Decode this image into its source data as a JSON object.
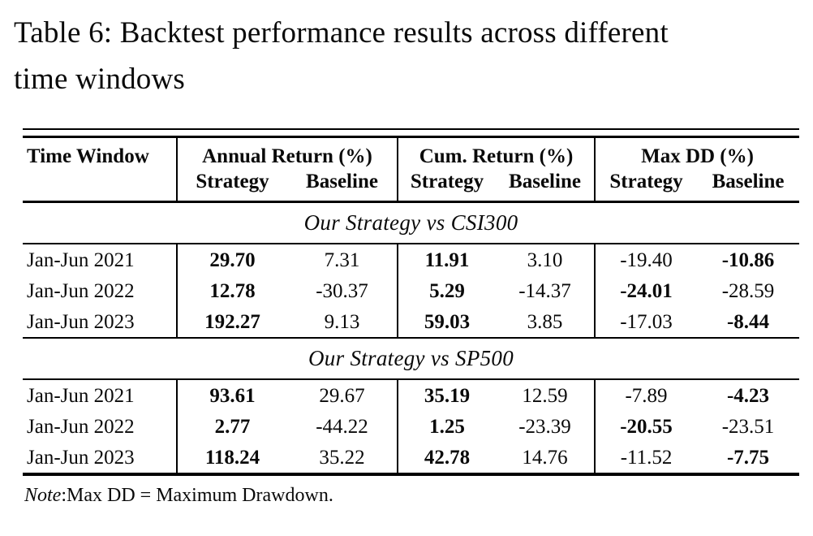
{
  "caption": {
    "line1": "Table 6: Backtest performance results across different",
    "line2": "time windows"
  },
  "colors": {
    "text": "#0a0a0a",
    "rule": "#000000",
    "background": "#ffffff"
  },
  "table": {
    "header": {
      "time_window": "Time Window",
      "groups": [
        {
          "label": "Annual Return (%)"
        },
        {
          "label": "Cum. Return (%)"
        },
        {
          "label": "Max DD (%)"
        }
      ],
      "sub": {
        "strategy": "Strategy",
        "baseline": "Baseline"
      }
    },
    "sections": [
      {
        "title": "Our Strategy vs CSI300",
        "rows": [
          {
            "time_window": "Jan-Jun 2021",
            "cells": [
              {
                "text": "29.70",
                "bold": true
              },
              {
                "text": "7.31",
                "bold": false
              },
              {
                "text": "11.91",
                "bold": true
              },
              {
                "text": "3.10",
                "bold": false
              },
              {
                "text": "-19.40",
                "bold": false
              },
              {
                "text": "-10.86",
                "bold": true
              }
            ]
          },
          {
            "time_window": "Jan-Jun 2022",
            "cells": [
              {
                "text": "12.78",
                "bold": true
              },
              {
                "text": "-30.37",
                "bold": false
              },
              {
                "text": "5.29",
                "bold": true
              },
              {
                "text": "-14.37",
                "bold": false
              },
              {
                "text": "-24.01",
                "bold": true
              },
              {
                "text": "-28.59",
                "bold": false
              }
            ]
          },
          {
            "time_window": "Jan-Jun 2023",
            "cells": [
              {
                "text": "192.27",
                "bold": true
              },
              {
                "text": "9.13",
                "bold": false
              },
              {
                "text": "59.03",
                "bold": true
              },
              {
                "text": "3.85",
                "bold": false
              },
              {
                "text": "-17.03",
                "bold": false
              },
              {
                "text": "-8.44",
                "bold": true
              }
            ]
          }
        ]
      },
      {
        "title": "Our Strategy vs SP500",
        "rows": [
          {
            "time_window": "Jan-Jun 2021",
            "cells": [
              {
                "text": "93.61",
                "bold": true
              },
              {
                "text": "29.67",
                "bold": false
              },
              {
                "text": "35.19",
                "bold": true
              },
              {
                "text": "12.59",
                "bold": false
              },
              {
                "text": "-7.89",
                "bold": false
              },
              {
                "text": "-4.23",
                "bold": true
              }
            ]
          },
          {
            "time_window": "Jan-Jun 2022",
            "cells": [
              {
                "text": "2.77",
                "bold": true
              },
              {
                "text": "-44.22",
                "bold": false
              },
              {
                "text": "1.25",
                "bold": true
              },
              {
                "text": "-23.39",
                "bold": false
              },
              {
                "text": "-20.55",
                "bold": true
              },
              {
                "text": "-23.51",
                "bold": false
              }
            ]
          },
          {
            "time_window": "Jan-Jun 2023",
            "cells": [
              {
                "text": "118.24",
                "bold": true
              },
              {
                "text": "35.22",
                "bold": false
              },
              {
                "text": "42.78",
                "bold": true
              },
              {
                "text": "14.76",
                "bold": false
              },
              {
                "text": "-11.52",
                "bold": false
              },
              {
                "text": "-7.75",
                "bold": true
              }
            ]
          }
        ]
      }
    ]
  },
  "note": {
    "label": "Note",
    "text": ":Max DD = Maximum Drawdown."
  }
}
